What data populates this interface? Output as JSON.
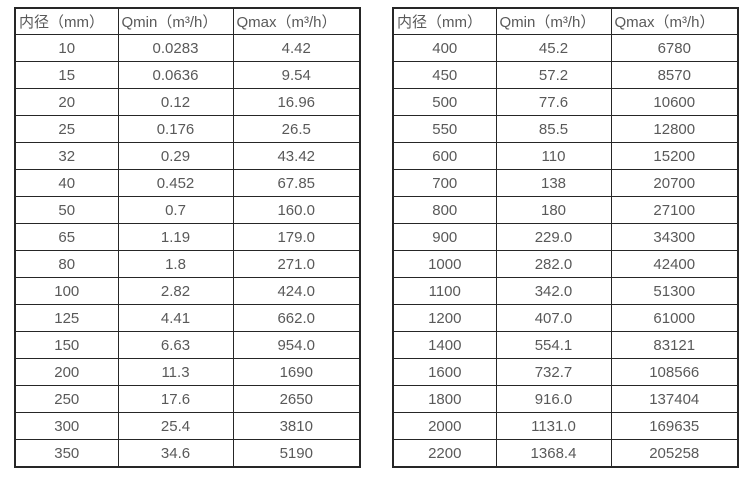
{
  "page": {
    "background_color": "#ffffff",
    "text_color": "#595959",
    "border_color": "#262626"
  },
  "tables": [
    {
      "name": "small-diameter-spec",
      "headers": [
        "内径（mm）",
        "Qmin（m³/h）",
        "Qmax（m³/h）"
      ],
      "rows": [
        [
          "10",
          "0.0283",
          "4.42"
        ],
        [
          "15",
          "0.0636",
          "9.54"
        ],
        [
          "20",
          "0.12",
          "16.96"
        ],
        [
          "25",
          "0.176",
          "26.5"
        ],
        [
          "32",
          "0.29",
          "43.42"
        ],
        [
          "40",
          "0.452",
          "67.85"
        ],
        [
          "50",
          "0.7",
          "160.0"
        ],
        [
          "65",
          "1.19",
          "179.0"
        ],
        [
          "80",
          "1.8",
          "271.0"
        ],
        [
          "100",
          "2.82",
          "424.0"
        ],
        [
          "125",
          "4.41",
          "662.0"
        ],
        [
          "150",
          "6.63",
          "954.0"
        ],
        [
          "200",
          "11.3",
          "1690"
        ],
        [
          "250",
          "17.6",
          "2650"
        ],
        [
          "300",
          "25.4",
          "3810"
        ],
        [
          "350",
          "34.6",
          "5190"
        ]
      ]
    },
    {
      "name": "large-diameter-spec",
      "headers": [
        "内径（mm）",
        "Qmin（m³/h）",
        "Qmax（m³/h）"
      ],
      "rows": [
        [
          "400",
          "45.2",
          "6780"
        ],
        [
          "450",
          "57.2",
          "8570"
        ],
        [
          "500",
          "77.6",
          "10600"
        ],
        [
          "550",
          "85.5",
          "12800"
        ],
        [
          "600",
          "110",
          "15200"
        ],
        [
          "700",
          "138",
          "20700"
        ],
        [
          "800",
          "180",
          "27100"
        ],
        [
          "900",
          "229.0",
          "34300"
        ],
        [
          "1000",
          "282.0",
          "42400"
        ],
        [
          "1100",
          "342.0",
          "51300"
        ],
        [
          "1200",
          "407.0",
          "61000"
        ],
        [
          "1400",
          "554.1",
          "83121"
        ],
        [
          "1600",
          "732.7",
          "108566"
        ],
        [
          "1800",
          "916.0",
          "137404"
        ],
        [
          "2000",
          "1131.0",
          "169635"
        ],
        [
          "2200",
          "1368.4",
          "205258"
        ]
      ]
    }
  ]
}
